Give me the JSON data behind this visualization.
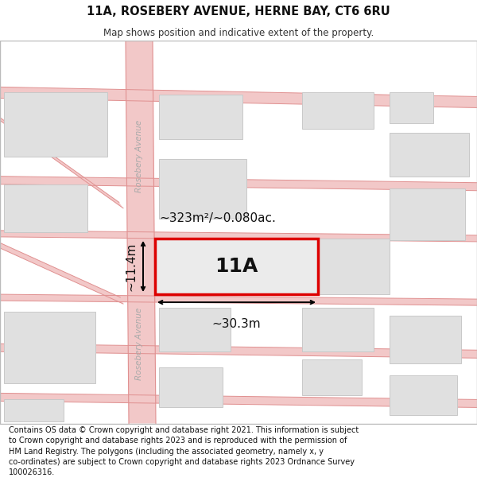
{
  "title": "11A, ROSEBERY AVENUE, HERNE BAY, CT6 6RU",
  "subtitle": "Map shows position and indicative extent of the property.",
  "footer": "Contains OS data © Crown copyright and database right 2021. This information is subject\nto Crown copyright and database rights 2023 and is reproduced with the permission of\nHM Land Registry. The polygons (including the associated geometry, namely x, y\nco-ordinates) are subject to Crown copyright and database rights 2023 Ordnance Survey\n100026316.",
  "map_bg": "#f8f8f8",
  "road_fill": "#f2c8c8",
  "road_edge": "#e09090",
  "building_fill": "#e0e0e0",
  "building_edge": "#c8c8c8",
  "highlight_fill": "#ebebeb",
  "highlight_edge": "#dd0000",
  "highlight_lw": 2.5,
  "area_text": "~323m²/~0.080ac.",
  "width_text": "~30.3m",
  "height_text": "~11.4m",
  "highlight_label": "11A",
  "road_label": "Rosebery Avenue",
  "title_fontsize": 10.5,
  "subtitle_fontsize": 8.5,
  "footer_fontsize": 7.0,
  "label_fontsize": 18,
  "annot_fontsize": 11
}
